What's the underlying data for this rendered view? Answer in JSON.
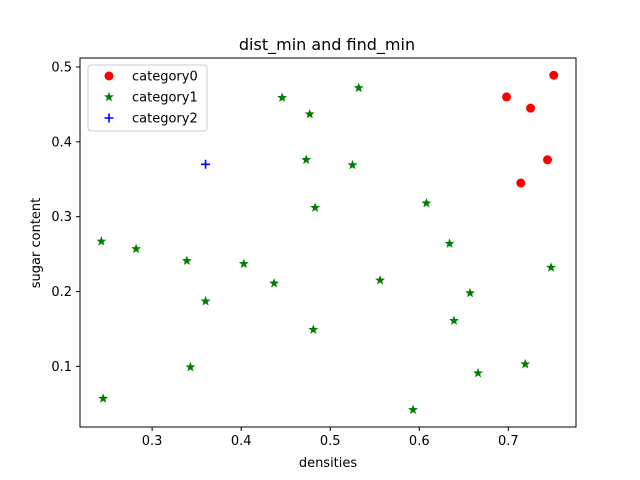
{
  "chart_data": {
    "type": "scatter",
    "title": "dist_min and find_min",
    "xlabel": "densities",
    "ylabel": "sugar content",
    "xlim": [
      0.219,
      0.776
    ],
    "ylim": [
      0.019,
      0.512
    ],
    "xticks": [
      0.3,
      0.4,
      0.5,
      0.6,
      0.7
    ],
    "yticks": [
      0.1,
      0.2,
      0.3,
      0.4,
      0.5
    ],
    "xtick_labels": [
      "0.3",
      "0.4",
      "0.5",
      "0.6",
      "0.7"
    ],
    "ytick_labels": [
      "0.1",
      "0.2",
      "0.3",
      "0.4",
      "0.5"
    ],
    "grid": false,
    "legend_position": "top-left",
    "series": [
      {
        "name": "category0",
        "marker": "circle",
        "color": "#ff0000",
        "points": [
          [
            0.751,
            0.489
          ],
          [
            0.698,
            0.46
          ],
          [
            0.725,
            0.445
          ],
          [
            0.744,
            0.376
          ],
          [
            0.714,
            0.345
          ]
        ]
      },
      {
        "name": "category1",
        "marker": "star",
        "color": "#008000",
        "points": [
          [
            0.446,
            0.459
          ],
          [
            0.532,
            0.472
          ],
          [
            0.477,
            0.437
          ],
          [
            0.473,
            0.376
          ],
          [
            0.525,
            0.369
          ],
          [
            0.483,
            0.312
          ],
          [
            0.608,
            0.318
          ],
          [
            0.243,
            0.267
          ],
          [
            0.282,
            0.257
          ],
          [
            0.634,
            0.264
          ],
          [
            0.339,
            0.241
          ],
          [
            0.403,
            0.237
          ],
          [
            0.748,
            0.232
          ],
          [
            0.437,
            0.211
          ],
          [
            0.556,
            0.215
          ],
          [
            0.657,
            0.198
          ],
          [
            0.36,
            0.187
          ],
          [
            0.639,
            0.161
          ],
          [
            0.481,
            0.149
          ],
          [
            0.343,
            0.099
          ],
          [
            0.719,
            0.103
          ],
          [
            0.666,
            0.091
          ],
          [
            0.245,
            0.057
          ],
          [
            0.593,
            0.042
          ]
        ]
      },
      {
        "name": "category2",
        "marker": "plus",
        "color": "#0000ff",
        "points": [
          [
            0.36,
            0.37
          ]
        ]
      }
    ]
  }
}
